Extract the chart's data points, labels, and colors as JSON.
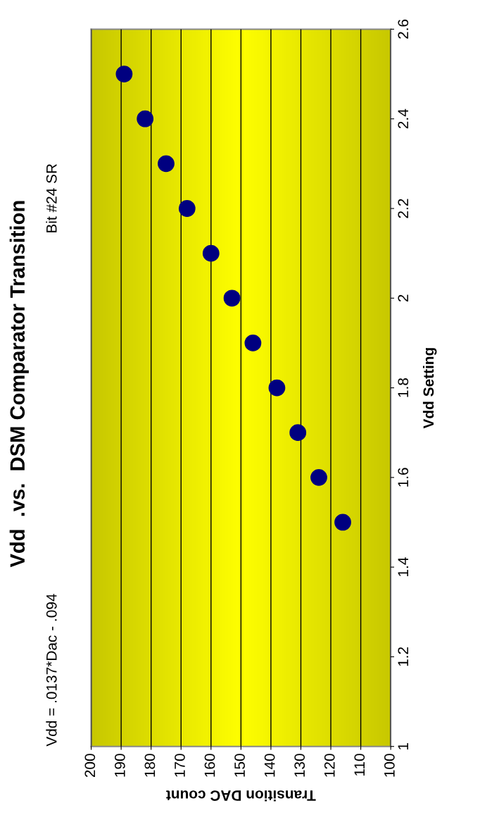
{
  "chart_data": {
    "type": "scatter",
    "title": "Vdd  .vs.  DSM Comparator Transition",
    "subtitle": "Vdd = .0137*Dac - .094",
    "annotations": [
      "Bit #24 SR"
    ],
    "xlabel": "Transition DAC count",
    "ylabel": "Vdd Setting",
    "x": [
      116,
      124,
      131,
      138,
      146,
      153,
      160,
      168,
      175,
      182,
      189
    ],
    "series": [
      {
        "color": "#000080",
        "values": [
          1.5,
          1.6,
          1.7,
          1.8,
          1.9,
          2.0,
          2.1,
          2.2,
          2.3,
          2.4,
          2.5
        ]
      }
    ],
    "xlim": [
      200,
      100
    ],
    "xticks": [
      100,
      110,
      120,
      130,
      140,
      150,
      160,
      170,
      180,
      190,
      200
    ],
    "ylim": [
      1,
      2.6
    ],
    "yticks": [
      1,
      1.2,
      1.4,
      1.6,
      1.8,
      2,
      2.2,
      2.4,
      2.6
    ],
    "grid": "x",
    "marker": "circle"
  }
}
